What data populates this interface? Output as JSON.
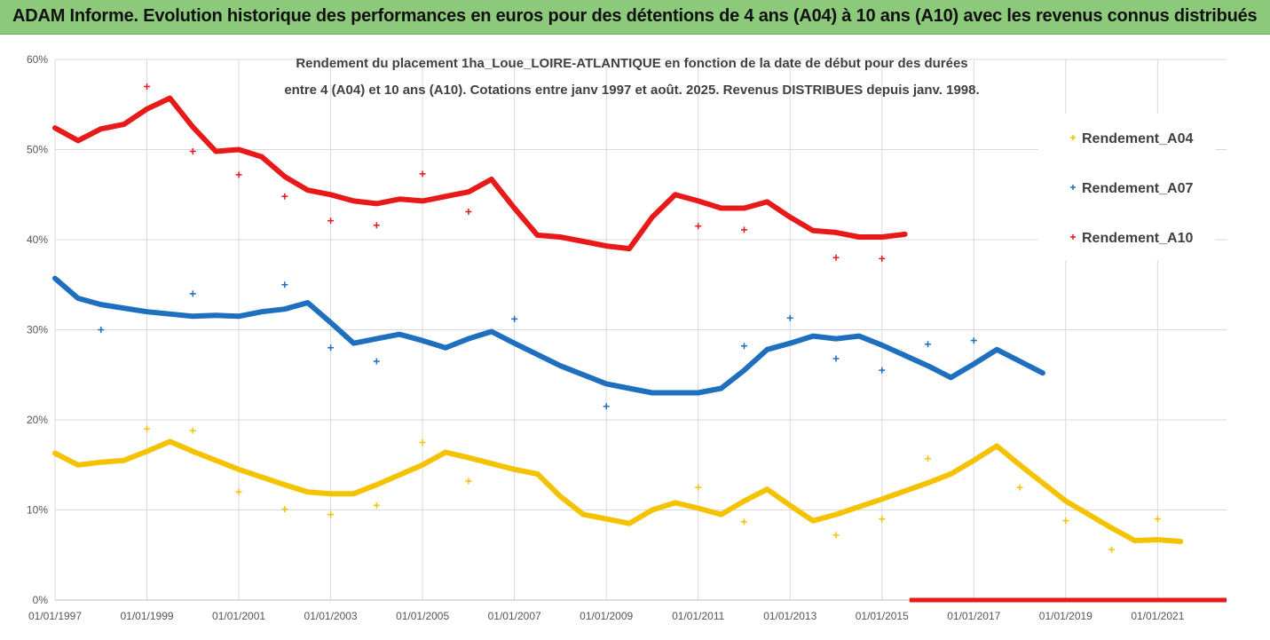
{
  "banner": {
    "title": "ADAM Informe. Evolution historique des performances en euros pour des détentions de 4 ans (A04) à 10 ans (A10) avec les revenus connus distribués",
    "color": "#8cc97a"
  },
  "chart_data": {
    "type": "scatter",
    "subtitle_line1": "Rendement du placement 1ha_Loue_LOIRE-ATLANTIQUE en fonction de la date de début pour des durées",
    "subtitle_line2": "entre 4 (A04) et 10 ans (A10). Cotations entre janv 1997 et août. 2025. Revenus DISTRIBUES depuis janv. 1998.",
    "xlim": [
      1997.0,
      2022.5
    ],
    "ylim": [
      0,
      60
    ],
    "x_ticks": [
      1997,
      1999,
      2001,
      2003,
      2005,
      2007,
      2009,
      2011,
      2013,
      2015,
      2017,
      2019,
      2021
    ],
    "x_tick_labels": [
      "01/01/1997",
      "01/01/1999",
      "01/01/2001",
      "01/01/2003",
      "01/01/2005",
      "01/01/2007",
      "01/01/2009",
      "01/01/2011",
      "01/01/2013",
      "01/01/2015",
      "01/01/2017",
      "01/01/2019",
      "01/01/2021"
    ],
    "y_ticks": [
      0,
      10,
      20,
      30,
      40,
      50,
      60
    ],
    "y_tick_labels": [
      "0%",
      "10%",
      "20%",
      "30%",
      "40%",
      "50%",
      "60%"
    ],
    "grid": true,
    "legend_position": "right",
    "series": [
      {
        "name": "Rendement_A04",
        "color": "#f5c200",
        "x": [
          1997.0,
          1997.5,
          1998.0,
          1998.5,
          1999.0,
          1999.5,
          2000.0,
          2001.0,
          2002.0,
          2002.5,
          2003.0,
          2003.5,
          2004.0,
          2005.0,
          2005.5,
          2006.0,
          2007.0,
          2007.5,
          2008.0,
          2008.5,
          2009.0,
          2009.5,
          2010.0,
          2010.5,
          2011.0,
          2011.5,
          2012.0,
          2012.5,
          2013.0,
          2013.5,
          2014.0,
          2015.0,
          2016.0,
          2016.5,
          2017.0,
          2017.5,
          2018.0,
          2019.0,
          2020.0,
          2020.5,
          2021.0,
          2021.5
        ],
        "y": [
          16.3,
          15.0,
          15.3,
          15.5,
          16.5,
          17.6,
          16.5,
          14.5,
          12.8,
          12.0,
          11.8,
          11.8,
          12.8,
          15.0,
          16.4,
          15.8,
          14.5,
          14.0,
          11.5,
          9.5,
          9.0,
          8.5,
          10.0,
          10.8,
          10.2,
          9.5,
          11.0,
          12.3,
          10.5,
          8.8,
          9.5,
          11.2,
          13.0,
          14.0,
          15.5,
          17.1,
          15.0,
          11.0,
          8.0,
          6.6,
          6.7,
          6.5
        ],
        "outliers_x": [
          1999.0,
          2000.0,
          2001.0,
          2002.0,
          2003.0,
          2004.0,
          2005.0,
          2006.0,
          2011.0,
          2012.0,
          2014.0,
          2015.0,
          2016.0,
          2018.0,
          2019.0,
          2020.0,
          2021.0
        ],
        "outliers_y": [
          19.0,
          18.8,
          12.0,
          10.1,
          9.5,
          10.5,
          17.5,
          13.2,
          12.5,
          8.7,
          7.2,
          9.0,
          15.7,
          12.5,
          8.8,
          5.6,
          9.0
        ]
      },
      {
        "name": "Rendement_A07",
        "color": "#1f6fbf",
        "x": [
          1997.0,
          1997.5,
          1998.0,
          1999.0,
          2000.0,
          2000.5,
          2001.0,
          2001.5,
          2002.0,
          2002.5,
          2003.0,
          2003.5,
          2004.0,
          2004.5,
          2005.0,
          2005.5,
          2006.0,
          2006.5,
          2007.0,
          2008.0,
          2009.0,
          2009.5,
          2010.0,
          2011.0,
          2011.5,
          2012.0,
          2012.5,
          2013.0,
          2013.5,
          2014.0,
          2014.5,
          2015.0,
          2016.0,
          2016.5,
          2017.0,
          2017.5,
          2018.0,
          2018.5
        ],
        "y": [
          35.7,
          33.5,
          32.8,
          32.0,
          31.5,
          31.6,
          31.5,
          32.0,
          32.3,
          33.0,
          30.8,
          28.5,
          29.0,
          29.5,
          28.8,
          28.0,
          29.0,
          29.8,
          28.5,
          26.0,
          24.0,
          23.5,
          23.0,
          23.0,
          23.5,
          25.5,
          27.8,
          28.5,
          29.3,
          29.0,
          29.3,
          28.3,
          26.0,
          24.7,
          26.2,
          27.8,
          26.5,
          25.2
        ],
        "outliers_x": [
          1998.0,
          2000.0,
          2002.0,
          2003.0,
          2004.0,
          2007.0,
          2009.0,
          2012.0,
          2013.0,
          2014.0,
          2015.0,
          2016.0,
          2017.0
        ],
        "outliers_y": [
          30.0,
          34.0,
          35.0,
          28.0,
          26.5,
          31.2,
          21.5,
          28.2,
          31.3,
          26.8,
          25.5,
          28.4,
          28.8
        ]
      },
      {
        "name": "Rendement_A10",
        "color": "#e81919",
        "x": [
          1997.0,
          1997.5,
          1998.0,
          1998.5,
          1999.0,
          1999.5,
          2000.0,
          2000.5,
          2001.0,
          2001.5,
          2002.0,
          2002.5,
          2003.0,
          2003.5,
          2004.0,
          2004.5,
          2005.0,
          2005.5,
          2006.0,
          2006.5,
          2007.0,
          2007.5,
          2008.0,
          2008.5,
          2009.0,
          2009.5,
          2010.0,
          2010.5,
          2011.0,
          2011.5,
          2012.0,
          2012.5,
          2013.0,
          2013.5,
          2014.0,
          2014.5,
          2015.0,
          2015.5
        ],
        "y": [
          52.4,
          51.0,
          52.3,
          52.8,
          54.5,
          55.7,
          52.5,
          49.8,
          50.0,
          49.2,
          47.0,
          45.5,
          45.0,
          44.3,
          44.0,
          44.5,
          44.3,
          44.8,
          45.3,
          46.7,
          43.5,
          40.5,
          40.3,
          39.8,
          39.3,
          39.0,
          42.5,
          45.0,
          44.3,
          43.5,
          43.5,
          44.2,
          42.5,
          41.0,
          40.8,
          40.3,
          40.3,
          40.6
        ],
        "outliers_x": [
          1999.0,
          2000.0,
          2001.0,
          2002.0,
          2003.0,
          2004.0,
          2005.0,
          2006.0,
          2011.0,
          2012.0,
          2014.0,
          2015.0
        ],
        "outliers_y": [
          57.0,
          49.8,
          47.2,
          44.8,
          42.1,
          41.6,
          47.3,
          43.1,
          41.5,
          41.1,
          38.0,
          37.9
        ],
        "zero_line_x": [
          2015.6,
          2022.5
        ],
        "zero_line_y": 0
      }
    ]
  }
}
